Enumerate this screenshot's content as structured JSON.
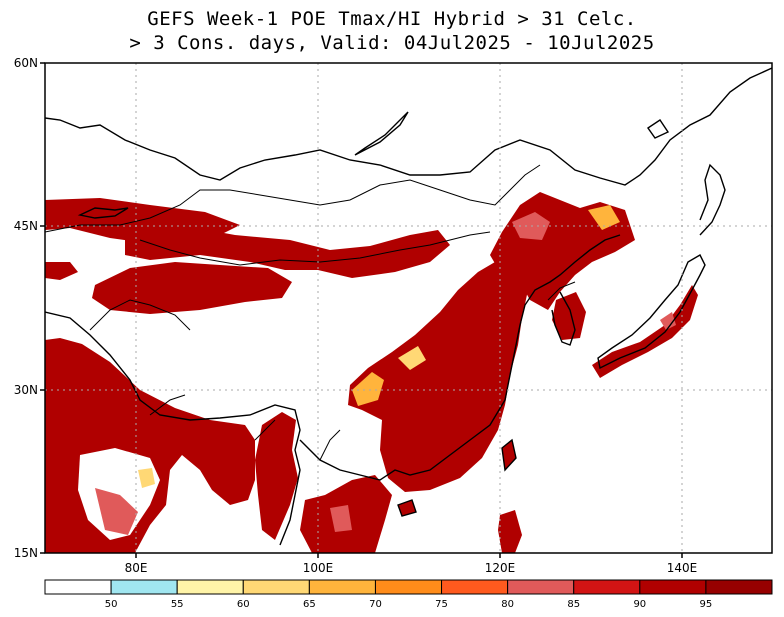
{
  "title": {
    "line1": "GEFS Week-1 POE Tmax/HI Hybrid > 31 Celc.",
    "line2": "> 3 Cons. days, Valid: 04Jul2025 - 10Jul2025"
  },
  "map": {
    "lon_range": [
      70,
      150
    ],
    "lat_range": [
      15,
      60
    ],
    "lat_ticks": [
      {
        "value": 15,
        "label": "15N"
      },
      {
        "value": 30,
        "label": "30N"
      },
      {
        "value": 45,
        "label": "45N"
      },
      {
        "value": 60,
        "label": "60N"
      }
    ],
    "lon_ticks": [
      {
        "value": 80,
        "label": "80E"
      },
      {
        "value": 100,
        "label": "100E"
      },
      {
        "value": 120,
        "label": "120E"
      },
      {
        "value": 140,
        "label": "140E"
      }
    ],
    "gridlines": true
  },
  "colorbar": {
    "levels": [
      "50",
      "55",
      "60",
      "65",
      "70",
      "75",
      "80",
      "85",
      "90",
      "95"
    ],
    "colors": [
      "#ffffff",
      "#a0e6f0",
      "#fff4a8",
      "#ffd875",
      "#ffb43c",
      "#ff8c1a",
      "#ff5a1e",
      "#e05a5a",
      "#d21414",
      "#b00000",
      "#960000"
    ]
  }
}
